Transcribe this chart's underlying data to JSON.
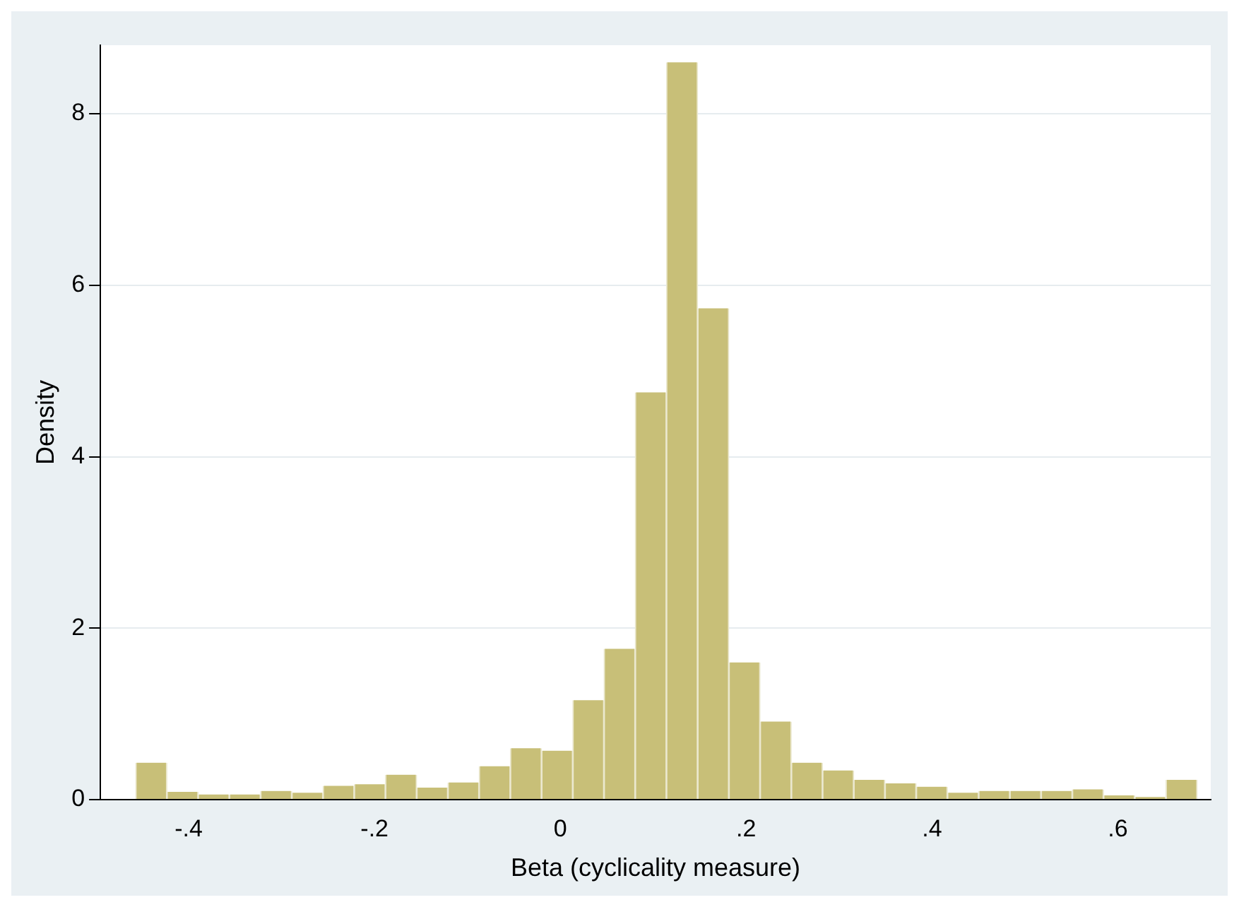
{
  "chart_data": {
    "type": "histogram",
    "xlabel": "Beta (cyclicality measure)",
    "ylabel": "Density",
    "color": "#c8bf78",
    "bins": [
      -0.457,
      -0.4234,
      -0.3898,
      -0.3562,
      -0.3226,
      -0.289,
      -0.2554,
      -0.2218,
      -0.1882,
      -0.1546,
      -0.121,
      -0.0874,
      -0.0538,
      -0.0202,
      0.0134,
      0.047,
      0.0806,
      0.1142,
      0.1478,
      0.1814,
      0.215,
      0.2486,
      0.2822,
      0.3158,
      0.3494,
      0.383,
      0.4166,
      0.4502,
      0.4838,
      0.5174,
      0.551,
      0.5846,
      0.6182,
      0.6518,
      0.6854
    ],
    "values": [
      0.43,
      0.09,
      0.06,
      0.06,
      0.1,
      0.08,
      0.16,
      0.18,
      0.29,
      0.14,
      0.2,
      0.39,
      0.6,
      0.57,
      1.16,
      1.76,
      4.75,
      8.6,
      5.73,
      1.6,
      0.91,
      0.43,
      0.34,
      0.23,
      0.19,
      0.15,
      0.08,
      0.1,
      0.1,
      0.1,
      0.12,
      0.05,
      0.03,
      0.23
    ],
    "xlim": [
      -0.495,
      0.7
    ],
    "xticks": [
      {
        "value": -0.4,
        "label": "-.4"
      },
      {
        "value": -0.2,
        "label": "-.2"
      },
      0,
      {
        "value": 0.2,
        "label": ".2"
      },
      {
        "value": 0.4,
        "label": ".4"
      },
      {
        "value": 0.6,
        "label": ".6"
      }
    ],
    "ylim": [
      0,
      8.8
    ],
    "yticks": [
      0,
      2,
      4,
      6,
      8
    ],
    "grid": "y"
  }
}
